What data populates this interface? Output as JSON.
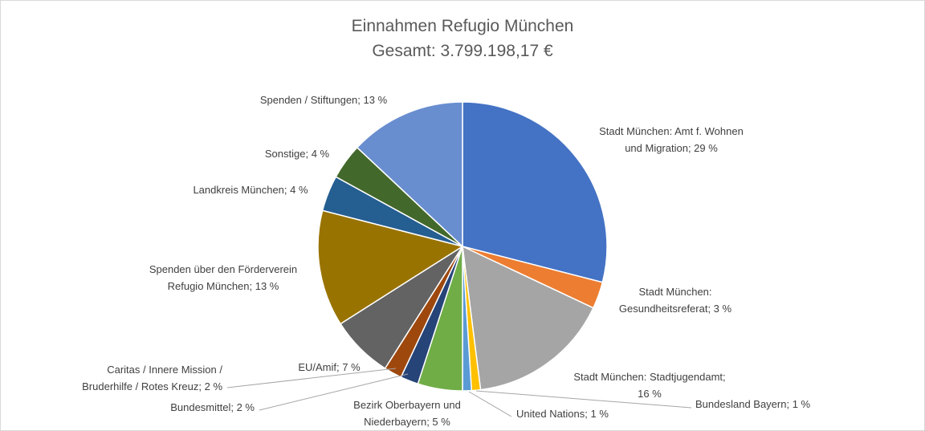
{
  "chart_data": {
    "type": "pie",
    "title": "Einnahmen Refugio München",
    "subtitle": "Gesamt: 3.799.198,17 €",
    "slices": [
      {
        "label": [
          "Stadt München: Amt f. Wohnen",
          "und Migration; 29 %"
        ],
        "value": 29,
        "color": "#4472c4"
      },
      {
        "label": [
          "Stadt München:",
          "Gesundheitsreferat; 3 %"
        ],
        "value": 3,
        "color": "#ed7d31"
      },
      {
        "label": [
          "Stadt München: Stadtjugendamt;",
          "16 %"
        ],
        "value": 16,
        "color": "#a5a5a5"
      },
      {
        "label": [
          "Bundesland Bayern; 1 %"
        ],
        "value": 1,
        "color": "#ffc000"
      },
      {
        "label": [
          "United Nations; 1 %"
        ],
        "value": 1,
        "color": "#5b9bd5"
      },
      {
        "label": [
          "Bezirk Oberbayern und",
          "Niederbayern; 5 %"
        ],
        "value": 5,
        "color": "#70ad47"
      },
      {
        "label": [
          "Bundesmittel; 2 %"
        ],
        "value": 2,
        "color": "#264478"
      },
      {
        "label": [
          "Caritas / Innere Mission /",
          "Bruderhilfe / Rotes Kreuz; 2 %"
        ],
        "value": 2,
        "color": "#9e480e"
      },
      {
        "label": [
          "EU/Amif; 7 %"
        ],
        "value": 7,
        "color": "#636363"
      },
      {
        "label": [
          "Spenden über den Förderverein",
          "Refugio München; 13 %"
        ],
        "value": 13,
        "color": "#997300"
      },
      {
        "label": [
          "Landkreis München; 4 %"
        ],
        "value": 4,
        "color": "#255e91"
      },
      {
        "label": [
          "Sonstige; 4 %"
        ],
        "value": 4,
        "color": "#43682b"
      },
      {
        "label": [
          "Spenden / Stiftungen; 13 %"
        ],
        "value": 13,
        "color": "#698ed0"
      }
    ]
  }
}
